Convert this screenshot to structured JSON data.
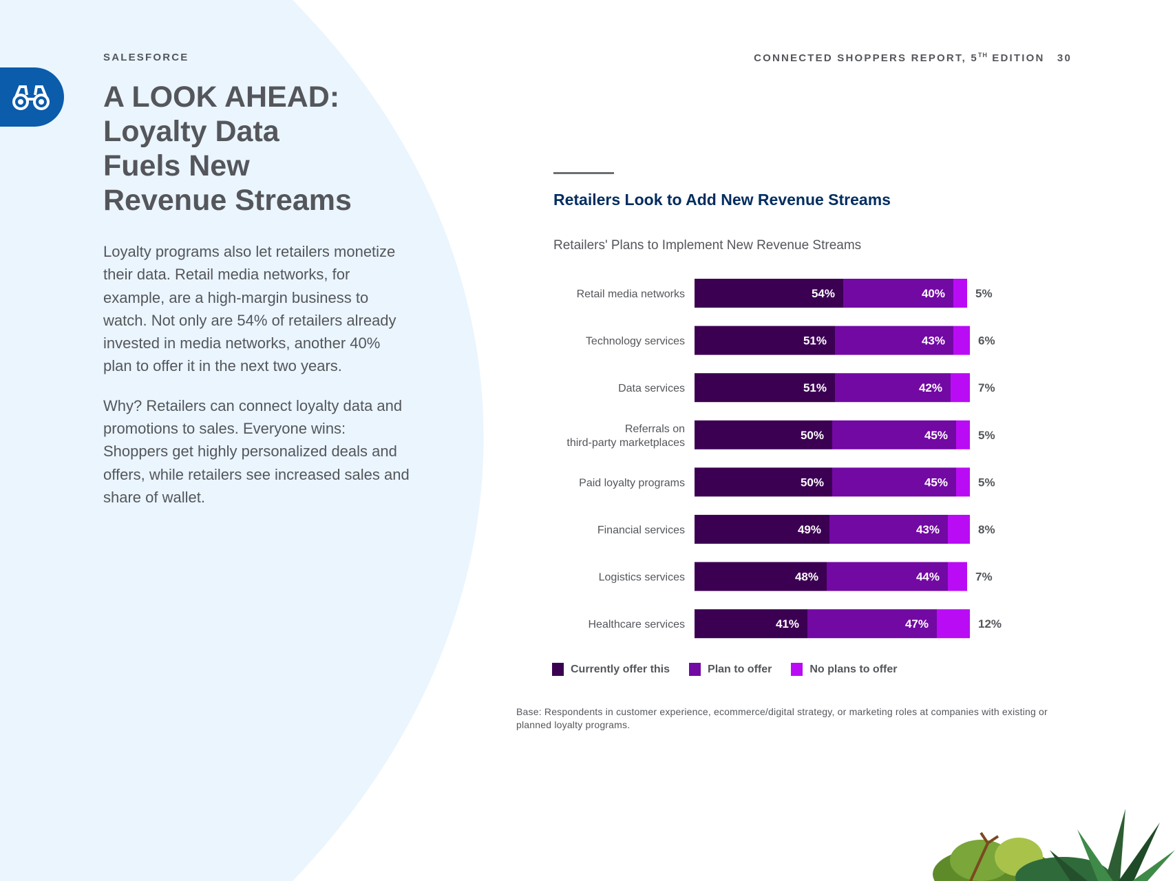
{
  "header": {
    "brand": "SALESFORCE",
    "report_title_main": "CONNECTED SHOPPERS REPORT, 5",
    "report_title_sup": "TH",
    "report_title_end": " EDITION",
    "page_number": "30"
  },
  "section_icon": "binoculars-icon",
  "headline": {
    "line1": "A LOOK AHEAD:",
    "line2": "Loyalty Data",
    "line3": "Fuels New",
    "line4": "Revenue Streams"
  },
  "body": {
    "paragraph1": "Loyalty programs also let retailers monetize their data. Retail media networks, for example, are a high-margin business to watch. Not only are 54% of retailers already invested in media networks, another 40% plan to offer it in the next two years.",
    "paragraph2": "Why? Retailers can connect loyalty data and promotions to sales. Everyone wins: Shoppers get highly personalized deals and offers, while retailers see increased sales and share of wallet."
  },
  "colors": {
    "currently_offer": "#3b0052",
    "plan_to_offer": "#7209a3",
    "no_plans": "#b90cf5",
    "chart_title": "#032d60",
    "body_text": "#54565b",
    "background_arc": "#eaf5fe",
    "icon_tab": "#0b5cab"
  },
  "chart_data": {
    "type": "bar",
    "orientation": "horizontal",
    "stacked": true,
    "title": "Retailers Look to Add New Revenue Streams",
    "subtitle": "Retailers' Plans to Implement New Revenue Streams",
    "categories": [
      [
        "Retail media networks"
      ],
      [
        "Technology services"
      ],
      [
        "Data services"
      ],
      [
        "Referrals on",
        "third-party marketplaces"
      ],
      [
        "Paid loyalty programs"
      ],
      [
        "Financial services"
      ],
      [
        "Logistics services"
      ],
      [
        "Healthcare services"
      ]
    ],
    "series": [
      {
        "name": "Currently offer this",
        "values": [
          54,
          51,
          51,
          50,
          50,
          49,
          48,
          41
        ]
      },
      {
        "name": "Plan to offer",
        "values": [
          40,
          43,
          42,
          45,
          45,
          43,
          44,
          47
        ]
      },
      {
        "name": "No plans to offer",
        "values": [
          5,
          6,
          7,
          5,
          5,
          8,
          7,
          12
        ]
      }
    ],
    "value_suffix": "%",
    "xlim": [
      0,
      100
    ],
    "grid": false,
    "legend_position": "bottom-left"
  },
  "footnote": "Base: Respondents in customer experience, ecommerce/digital strategy, or marketing roles at companies with existing or planned loyalty programs."
}
